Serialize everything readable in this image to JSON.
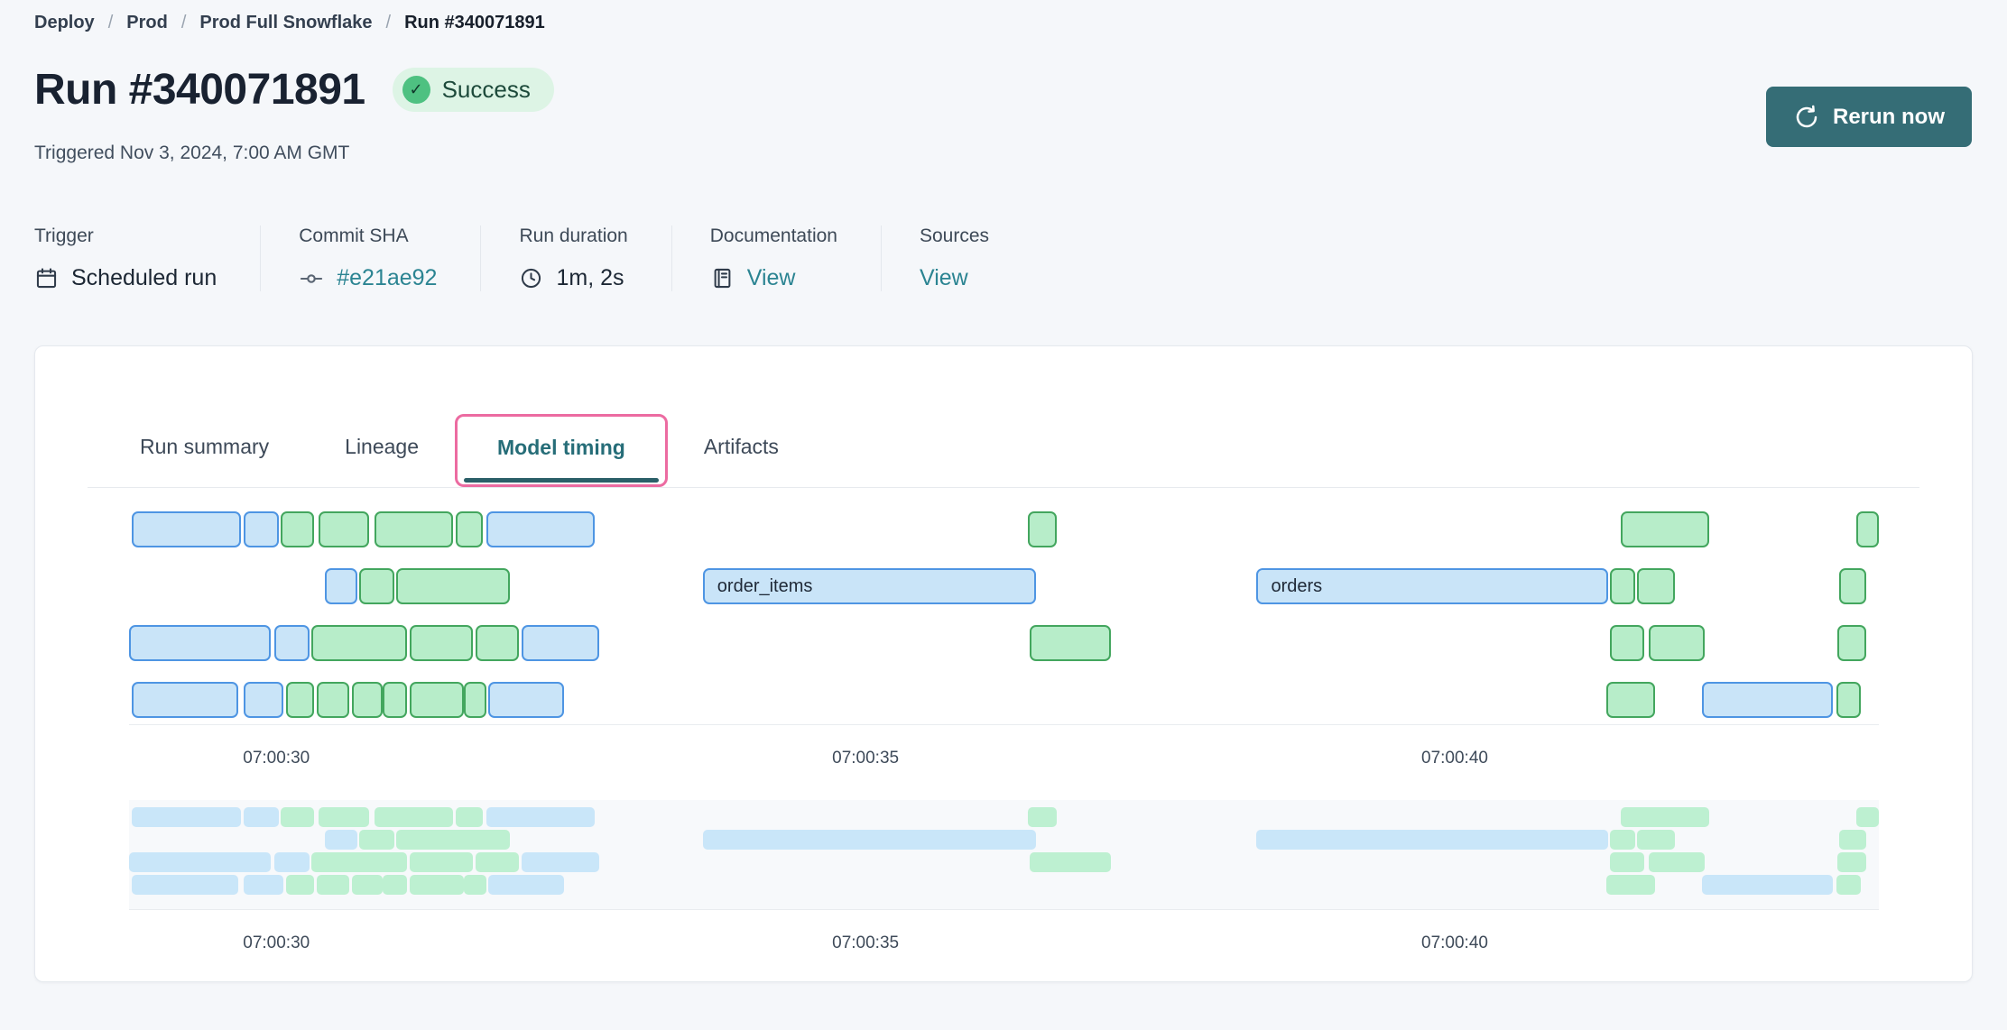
{
  "breadcrumb": {
    "separator": "/",
    "items": [
      {
        "label": "Deploy"
      },
      {
        "label": "Prod"
      },
      {
        "label": "Prod Full Snowflake"
      },
      {
        "label": "Run #340071891"
      }
    ]
  },
  "header": {
    "title": "Run #340071891",
    "status": {
      "label": "Success",
      "icon": "check-icon"
    },
    "triggered": "Triggered Nov 3, 2024, 7:00 AM GMT",
    "rerun_label": "Rerun now"
  },
  "meta": {
    "columns": [
      {
        "label": "Trigger",
        "value": "Scheduled run",
        "icon": "calendar-icon",
        "is_link": false
      },
      {
        "label": "Commit SHA",
        "value": "#e21ae92",
        "icon": "commit-icon",
        "is_link": true
      },
      {
        "label": "Run duration",
        "value": "1m, 2s",
        "icon": "clock-icon",
        "is_link": false
      },
      {
        "label": "Documentation",
        "value": "View",
        "icon": "docs-icon",
        "is_link": true
      },
      {
        "label": "Sources",
        "value": "View",
        "icon": null,
        "is_link": true
      }
    ]
  },
  "tabs": [
    {
      "label": "Run summary",
      "active": false
    },
    {
      "label": "Lineage",
      "active": false
    },
    {
      "label": "Model timing",
      "active": true
    },
    {
      "label": "Artifacts",
      "active": false
    }
  ],
  "colors": {
    "accent_teal": "#356d76",
    "link_teal": "#2b8492",
    "tab_active_teal": "#266d78",
    "highlight_pink": "#ec6ba1",
    "status_success_bg": "#ddf4e5",
    "status_success_dot": "#4ec181",
    "bar_blue_fill": "#c9e4f8",
    "bar_blue_border": "#4e95e3",
    "bar_green_fill": "#b7edc9",
    "bar_green_border": "#43a65e",
    "page_bg": "#f5f7fa"
  },
  "chart_data": {
    "type": "gantt",
    "title": "Model timing",
    "time_base": "seconds after 07:00:00 GMT",
    "x_domain_seconds": [
      28.75,
      43.6
    ],
    "ticks": [
      {
        "t": 30,
        "label": "07:00:30"
      },
      {
        "t": 35,
        "label": "07:00:35"
      },
      {
        "t": 40,
        "label": "07:00:40"
      }
    ],
    "overview_mirrors_main": true,
    "rows": [
      {
        "bars": [
          {
            "start": 28.77,
            "end": 29.7,
            "color": "blue"
          },
          {
            "start": 29.72,
            "end": 30.02,
            "color": "blue"
          },
          {
            "start": 30.04,
            "end": 30.32,
            "color": "green"
          },
          {
            "start": 30.36,
            "end": 30.79,
            "color": "green"
          },
          {
            "start": 30.83,
            "end": 31.5,
            "color": "green"
          },
          {
            "start": 31.52,
            "end": 31.75,
            "color": "green"
          },
          {
            "start": 31.78,
            "end": 32.7,
            "color": "blue"
          },
          {
            "start": 36.38,
            "end": 36.62,
            "color": "green"
          },
          {
            "start": 41.41,
            "end": 42.16,
            "color": "green"
          },
          {
            "start": 43.41,
            "end": 43.6,
            "color": "green"
          }
        ]
      },
      {
        "bars": [
          {
            "start": 30.41,
            "end": 30.69,
            "color": "blue"
          },
          {
            "start": 30.7,
            "end": 31.0,
            "color": "green"
          },
          {
            "start": 31.02,
            "end": 31.98,
            "color": "green"
          },
          {
            "start": 33.62,
            "end": 36.45,
            "color": "blue",
            "label": "order_items"
          },
          {
            "start": 38.32,
            "end": 41.3,
            "color": "blue",
            "label": "orders"
          },
          {
            "start": 41.32,
            "end": 41.53,
            "color": "green"
          },
          {
            "start": 41.55,
            "end": 41.87,
            "color": "green"
          },
          {
            "start": 43.26,
            "end": 43.49,
            "color": "green"
          }
        ]
      },
      {
        "bars": [
          {
            "start": 28.75,
            "end": 29.95,
            "color": "blue"
          },
          {
            "start": 29.98,
            "end": 30.28,
            "color": "blue"
          },
          {
            "start": 30.3,
            "end": 31.11,
            "color": "green"
          },
          {
            "start": 31.13,
            "end": 31.67,
            "color": "green"
          },
          {
            "start": 31.69,
            "end": 32.06,
            "color": "green"
          },
          {
            "start": 32.08,
            "end": 32.74,
            "color": "blue"
          },
          {
            "start": 36.39,
            "end": 37.08,
            "color": "green"
          },
          {
            "start": 41.32,
            "end": 41.61,
            "color": "green"
          },
          {
            "start": 41.65,
            "end": 42.12,
            "color": "green"
          },
          {
            "start": 43.25,
            "end": 43.49,
            "color": "green"
          }
        ]
      },
      {
        "bars": [
          {
            "start": 28.77,
            "end": 29.68,
            "color": "blue"
          },
          {
            "start": 29.72,
            "end": 30.06,
            "color": "blue"
          },
          {
            "start": 30.08,
            "end": 30.32,
            "color": "green"
          },
          {
            "start": 30.34,
            "end": 30.62,
            "color": "green"
          },
          {
            "start": 30.64,
            "end": 30.9,
            "color": "green"
          },
          {
            "start": 30.9,
            "end": 31.11,
            "color": "green"
          },
          {
            "start": 31.13,
            "end": 31.59,
            "color": "green"
          },
          {
            "start": 31.59,
            "end": 31.78,
            "color": "green"
          },
          {
            "start": 31.8,
            "end": 32.44,
            "color": "blue"
          },
          {
            "start": 41.29,
            "end": 41.7,
            "color": "green"
          },
          {
            "start": 42.1,
            "end": 43.21,
            "color": "blue"
          },
          {
            "start": 43.24,
            "end": 43.45,
            "color": "green"
          }
        ]
      }
    ]
  }
}
